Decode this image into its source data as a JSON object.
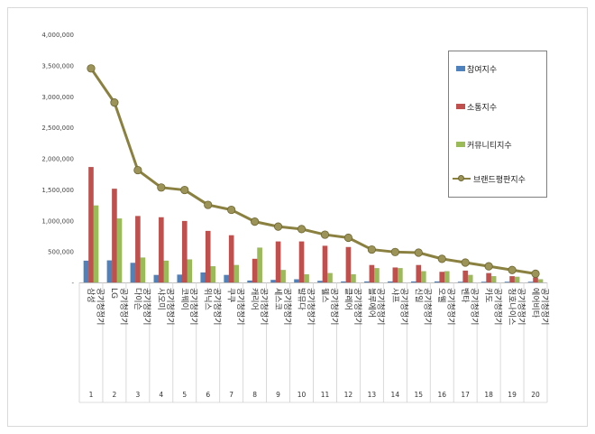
{
  "chart_data": {
    "type": "bar",
    "categories": [
      "삼성 공기청정기",
      "LG 공기청정기",
      "다이슨 공기청정기",
      "샤오미 공기청정기",
      "코웨이 공기청정기",
      "위닉스 공기청정기",
      "쿠쿠 공기청정기",
      "캐리어 공기청정기",
      "세스코 공기청정기",
      "발뮤다 공기청정기",
      "웰스 공기청정기",
      "클레어 공기청정기",
      "블루에어 공기청정기",
      "샤프 공기청정기",
      "신일 공기청정기",
      "오웰 공기청정기",
      "벤타 공기청정기",
      "카도 공기청정기",
      "청호나이스 공기청정기",
      "에어비타 공기청정기"
    ],
    "ranks": [
      "1",
      "2",
      "3",
      "4",
      "5",
      "6",
      "7",
      "8",
      "9",
      "10",
      "11",
      "12",
      "13",
      "14",
      "15",
      "16",
      "17",
      "18",
      "19",
      "20"
    ],
    "series": [
      {
        "name": "참여지수",
        "color": "#4f81bd",
        "values": [
          350000,
          355000,
          315000,
          120000,
          125000,
          160000,
          120000,
          30000,
          40000,
          50000,
          25000,
          15000,
          15000,
          15000,
          15000,
          15000,
          10000,
          10000,
          10000,
          10000
        ]
      },
      {
        "name": "소통지수",
        "color": "#c0504d",
        "values": [
          1860000,
          1510000,
          1070000,
          1050000,
          990000,
          830000,
          760000,
          380000,
          660000,
          660000,
          590000,
          570000,
          280000,
          240000,
          280000,
          170000,
          190000,
          150000,
          100000,
          80000
        ]
      },
      {
        "name": "커뮤니티지수",
        "color": "#9bbb59",
        "values": [
          1240000,
          1030000,
          400000,
          350000,
          370000,
          260000,
          280000,
          560000,
          200000,
          130000,
          150000,
          130000,
          230000,
          230000,
          180000,
          180000,
          120000,
          100000,
          90000,
          50000
        ]
      },
      {
        "name": "브랜드평판지수",
        "type": "line",
        "color": "#8a8040",
        "values": [
          3450000,
          2900000,
          1810000,
          1530000,
          1490000,
          1250000,
          1170000,
          980000,
          900000,
          860000,
          770000,
          720000,
          530000,
          490000,
          480000,
          380000,
          320000,
          260000,
          200000,
          140000
        ]
      }
    ],
    "ylim": [
      0,
      4000000
    ],
    "yticks": [
      "-",
      "500,000",
      "1,000,000",
      "1,500,000",
      "2,000,000",
      "2,500,000",
      "3,000,000",
      "3,500,000",
      "4,000,000"
    ],
    "legend_position": "right",
    "grid": false
  }
}
